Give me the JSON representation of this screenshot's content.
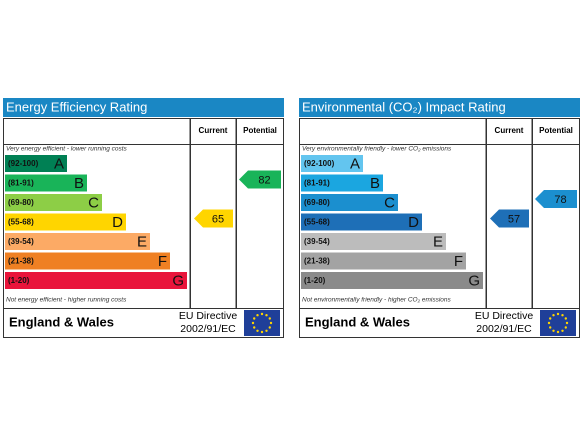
{
  "panels": [
    {
      "title": "Energy Efficiency Rating",
      "title_color": "#1a87c4",
      "columns": [
        "Current",
        "Potential"
      ],
      "top_note": "Very energy efficient - lower running costs",
      "bottom_note": "Not energy efficient - higher running costs",
      "bands": [
        {
          "range": "(92-100)",
          "letter": "A",
          "color": "#008054"
        },
        {
          "range": "(81-91)",
          "letter": "B",
          "color": "#19b459"
        },
        {
          "range": "(69-80)",
          "letter": "C",
          "color": "#8dce46"
        },
        {
          "range": "(55-68)",
          "letter": "D",
          "color": "#ffd500"
        },
        {
          "range": "(39-54)",
          "letter": "E",
          "color": "#fcaa65"
        },
        {
          "range": "(21-38)",
          "letter": "F",
          "color": "#ef8023"
        },
        {
          "range": "(1-20)",
          "letter": "G",
          "color": "#e9153b"
        }
      ],
      "current": {
        "value": 65,
        "color": "#ffd500"
      },
      "potential": {
        "value": 82,
        "color": "#19b459"
      },
      "footer": {
        "region": "England & Wales",
        "directive": "EU Directive",
        "code": "2002/91/EC"
      }
    },
    {
      "title": "Environmental (CO₂) Impact Rating",
      "title_color": "#1a87c4",
      "columns": [
        "Current",
        "Potential"
      ],
      "top_note": "Very environmentally friendly - lower CO₂ emissions",
      "bottom_note": "Not environmentally friendly - higher CO₂ emissions",
      "bands": [
        {
          "range": "(92-100)",
          "letter": "A",
          "color": "#63c5ef"
        },
        {
          "range": "(81-91)",
          "letter": "B",
          "color": "#1ba6e0"
        },
        {
          "range": "(69-80)",
          "letter": "C",
          "color": "#1b8fcf"
        },
        {
          "range": "(55-68)",
          "letter": "D",
          "color": "#1e6fb7"
        },
        {
          "range": "(39-54)",
          "letter": "E",
          "color": "#bcbcbc"
        },
        {
          "range": "(21-38)",
          "letter": "F",
          "color": "#a3a3a3"
        },
        {
          "range": "(1-20)",
          "letter": "G",
          "color": "#8a8a8a"
        }
      ],
      "current": {
        "value": 57,
        "color": "#1e6fb7"
      },
      "potential": {
        "value": 78,
        "color": "#1b8fcf"
      },
      "footer": {
        "region": "England & Wales",
        "directive": "EU Directive",
        "code": "2002/91/EC"
      }
    }
  ]
}
